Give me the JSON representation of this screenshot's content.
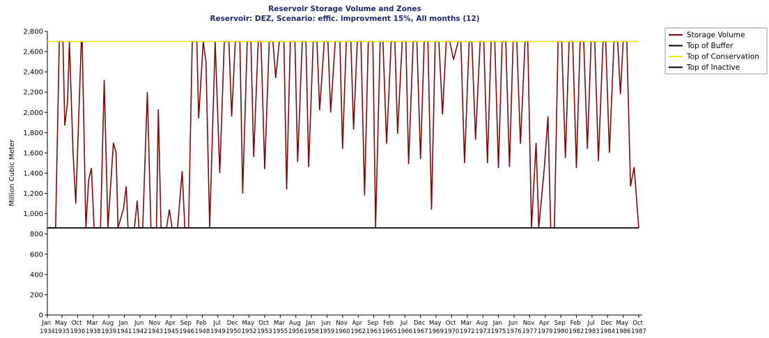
{
  "chart_data": {
    "type": "line",
    "title": "Reservoir Storage Volume and Zones",
    "subtitle": "Reservoir: DEZ,  Scenario: effic.  improvment 15%,  All months (12)",
    "ylabel": "Million Cubic Meter",
    "legend": "right",
    "xlim": [
      "1934-01",
      "1987-10"
    ],
    "xticks": [
      {
        "value": "1934-01",
        "label": "Jan 1934"
      },
      {
        "value": "1935-05",
        "label": "May 1935"
      },
      {
        "value": "1936-10",
        "label": "Oct 1936"
      },
      {
        "value": "1938-03",
        "label": "Mar 1938"
      },
      {
        "value": "1939-08",
        "label": "Aug 1939"
      },
      {
        "value": "1941-01",
        "label": "Jan 1941"
      },
      {
        "value": "1942-06",
        "label": "Jun 1942"
      },
      {
        "value": "1943-11",
        "label": "Nov 1943"
      },
      {
        "value": "1945-04",
        "label": "Apr 1945"
      },
      {
        "value": "1946-09",
        "label": "Sep 1946"
      },
      {
        "value": "1948-02",
        "label": "Feb 1948"
      },
      {
        "value": "1949-07",
        "label": "Jul 1949"
      },
      {
        "value": "1950-12",
        "label": "Dec 1950"
      },
      {
        "value": "1952-05",
        "label": "May 1952"
      },
      {
        "value": "1953-10",
        "label": "Oct 1953"
      },
      {
        "value": "1955-03",
        "label": "Mar 1955"
      },
      {
        "value": "1956-08",
        "label": "Aug 1956"
      },
      {
        "value": "1958-01",
        "label": "Jan 1958"
      },
      {
        "value": "1959-06",
        "label": "Jun 1959"
      },
      {
        "value": "1960-11",
        "label": "Nov 1960"
      },
      {
        "value": "1962-04",
        "label": "Apr 1962"
      },
      {
        "value": "1963-09",
        "label": "Sep 1963"
      },
      {
        "value": "1965-02",
        "label": "Feb 1965"
      },
      {
        "value": "1966-07",
        "label": "Jul 1966"
      },
      {
        "value": "1967-12",
        "label": "Dec 1967"
      },
      {
        "value": "1969-05",
        "label": "May 1969"
      },
      {
        "value": "1970-10",
        "label": "Oct 1970"
      },
      {
        "value": "1972-03",
        "label": "Mar 1972"
      },
      {
        "value": "1973-08",
        "label": "Aug 1973"
      },
      {
        "value": "1975-01",
        "label": "Jan 1975"
      },
      {
        "value": "1976-06",
        "label": "Jun 1976"
      },
      {
        "value": "1977-11",
        "label": "Nov 1977"
      },
      {
        "value": "1979-04",
        "label": "Apr 1979"
      },
      {
        "value": "1980-09",
        "label": "Sep 1980"
      },
      {
        "value": "1982-02",
        "label": "Feb 1982"
      },
      {
        "value": "1983-07",
        "label": "Jul 1983"
      },
      {
        "value": "1984-12",
        "label": "Dec 1984"
      },
      {
        "value": "1986-05",
        "label": "May 1986"
      },
      {
        "value": "1987-10",
        "label": "Oct 1987"
      }
    ],
    "ylim": [
      0,
      2800
    ],
    "yticks": [
      0,
      200,
      400,
      600,
      800,
      {
        "value": 1000,
        "label": "1,000"
      },
      {
        "value": 1200,
        "label": "1,200"
      },
      {
        "value": 1400,
        "label": "1,400"
      },
      {
        "value": 1600,
        "label": "1,600"
      },
      {
        "value": 1800,
        "label": "1,800"
      },
      {
        "value": 2000,
        "label": "2,000"
      },
      {
        "value": 2200,
        "label": "2,200"
      },
      {
        "value": 2400,
        "label": "2,400"
      },
      {
        "value": 2600,
        "label": "2,600"
      },
      {
        "value": 2800,
        "label": "2,800"
      }
    ],
    "series": [
      {
        "name": "Storage Volume",
        "color": "#7a0a0a",
        "x": [
          "1934-01",
          "1934-10",
          "1935-02",
          "1935-06",
          "1935-08",
          "1935-11",
          "1936-01",
          "1936-05",
          "1936-08",
          "1937-02",
          "1937-03",
          "1937-07",
          "1937-10",
          "1938-01",
          "1938-04",
          "1938-11",
          "1939-03",
          "1939-07",
          "1940-01",
          "1940-04",
          "1940-06",
          "1940-12",
          "1941-03",
          "1941-05",
          "1941-12",
          "1942-03",
          "1942-05",
          "1942-09",
          "1943-02",
          "1943-06",
          "1943-12",
          "1944-02",
          "1944-05",
          "1944-11",
          "1945-02",
          "1945-05",
          "1945-11",
          "1946-04",
          "1946-07",
          "1946-11",
          "1947-03",
          "1947-08",
          "1947-10",
          "1948-03",
          "1948-06",
          "1948-10",
          "1949-04",
          "1949-09",
          "1950-02",
          "1950-07",
          "1950-10",
          "1951-02",
          "1951-07",
          "1951-10",
          "1952-03",
          "1952-07",
          "1952-10",
          "1953-03",
          "1953-06",
          "1953-10",
          "1954-03",
          "1954-07",
          "1954-10",
          "1955-02",
          "1955-07",
          "1955-10",
          "1956-02",
          "1956-07",
          "1956-10",
          "1957-03",
          "1957-07",
          "1957-10",
          "1958-03",
          "1958-07",
          "1958-10",
          "1959-03",
          "1959-07",
          "1959-10",
          "1960-03",
          "1960-08",
          "1960-11",
          "1961-03",
          "1961-08",
          "1961-11",
          "1962-03",
          "1962-07",
          "1962-11",
          "1963-03",
          "1963-08",
          "1963-11",
          "1964-04",
          "1964-07",
          "1964-11",
          "1965-04",
          "1965-08",
          "1965-11",
          "1966-04",
          "1966-08",
          "1966-11",
          "1967-04",
          "1967-08",
          "1967-12",
          "1968-04",
          "1968-08",
          "1968-12",
          "1969-04",
          "1969-08",
          "1969-12",
          "1970-04",
          "1970-08",
          "1970-12",
          "1971-05",
          "1971-08",
          "1971-12",
          "1972-05",
          "1972-08",
          "1972-12",
          "1973-05",
          "1973-09",
          "1974-01",
          "1974-05",
          "1974-09",
          "1975-01",
          "1975-05",
          "1975-09",
          "1976-01",
          "1976-05",
          "1976-09",
          "1977-01",
          "1977-06",
          "1977-09",
          "1978-01",
          "1978-06",
          "1978-09",
          "1979-03",
          "1979-07",
          "1979-10",
          "1980-02",
          "1980-06",
          "1980-10",
          "1981-02",
          "1981-06",
          "1981-10",
          "1982-02",
          "1982-06",
          "1982-10",
          "1983-02",
          "1983-06",
          "1983-10",
          "1984-02",
          "1984-07",
          "1984-10",
          "1985-02",
          "1985-07",
          "1985-11",
          "1986-02",
          "1986-05",
          "1986-09",
          "1987-01",
          "1987-05",
          "1987-10"
        ],
        "values": [
          860,
          860,
          2700,
          2700,
          1870,
          2100,
          2700,
          1600,
          1100,
          2700,
          2700,
          860,
          1330,
          1450,
          860,
          860,
          2320,
          860,
          1700,
          1600,
          860,
          1050,
          1270,
          860,
          860,
          1130,
          860,
          860,
          2200,
          860,
          860,
          2030,
          860,
          860,
          1040,
          860,
          860,
          1420,
          860,
          860,
          2700,
          2700,
          1940,
          2700,
          2500,
          860,
          2700,
          1400,
          2700,
          2700,
          1960,
          2700,
          2700,
          1200,
          2700,
          2700,
          1560,
          2700,
          2700,
          1440,
          2700,
          2700,
          2340,
          2700,
          2700,
          1240,
          2700,
          2700,
          1510,
          2700,
          2700,
          1460,
          2700,
          2700,
          2020,
          2700,
          2700,
          2000,
          2700,
          2700,
          1640,
          2700,
          2700,
          1830,
          2700,
          2700,
          1180,
          2700,
          2700,
          860,
          2700,
          2700,
          1690,
          2700,
          2700,
          1790,
          2700,
          2700,
          1490,
          2700,
          2700,
          1540,
          2700,
          2700,
          1040,
          2700,
          2700,
          1980,
          2700,
          2700,
          2520,
          2700,
          2700,
          1500,
          2700,
          2700,
          1730,
          2700,
          2700,
          1500,
          2700,
          2700,
          1450,
          2700,
          2700,
          1460,
          2700,
          2700,
          1690,
          2700,
          2700,
          860,
          1700,
          860,
          1450,
          1960,
          860,
          860,
          2700,
          2700,
          1550,
          2700,
          2700,
          1450,
          2700,
          2700,
          1640,
          2700,
          2700,
          1520,
          2700,
          2700,
          1600,
          2700,
          2700,
          2180,
          2700,
          2700,
          1270,
          1460,
          860
        ]
      },
      {
        "name": "Top of Buffer",
        "color": "#000000",
        "x": [
          "1934-01",
          "1987-10"
        ],
        "values": [
          860,
          860
        ]
      },
      {
        "name": "Top of Conservation",
        "color": "#e8e800",
        "x": [
          "1934-01",
          "1987-10"
        ],
        "values": [
          2700,
          2700
        ]
      },
      {
        "name": "Top of Inactive",
        "color": "#000000",
        "x": [
          "1934-01",
          "1987-10"
        ],
        "values": [
          860,
          860
        ]
      }
    ]
  }
}
